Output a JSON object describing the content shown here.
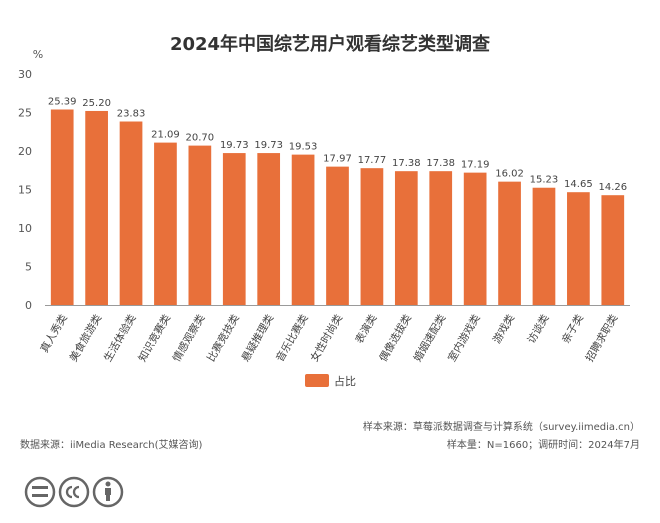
{
  "chart_data": {
    "type": "bar",
    "title": "2024年中国综艺用户观看综艺类型调查",
    "ylabel": "%",
    "ylim": [
      0,
      30
    ],
    "yticks": [
      0,
      5,
      10,
      15,
      20,
      25,
      30
    ],
    "grid": false,
    "legend_position": "bottom-center",
    "categories": [
      "真人秀类",
      "美食旅游类",
      "生活体验类",
      "知识竞赛类",
      "情感观察类",
      "比赛竞技类",
      "悬疑推理类",
      "音乐比赛类",
      "女性时尚类",
      "表演类",
      "偶像选拔类",
      "婚姻速配类",
      "室内游戏类",
      "游戏类",
      "访谈类",
      "亲子类",
      "招聘求职类"
    ],
    "series": [
      {
        "name": "占比",
        "color": "#E8703A",
        "values": [
          25.39,
          25.2,
          23.83,
          21.09,
          20.7,
          19.73,
          19.73,
          19.53,
          17.97,
          17.77,
          17.38,
          17.38,
          17.19,
          16.02,
          15.23,
          14.65,
          14.26
        ],
        "labels": [
          "25.39",
          "25.20",
          "23.83",
          "21.09",
          "20.70",
          "19.73",
          "19.73",
          "19.53",
          "17.97",
          "17.77",
          "17.38",
          "17.38",
          "17.19",
          "16.02",
          "15.23",
          "14.65",
          "14.26"
        ]
      }
    ]
  },
  "footer": {
    "source_left": "数据来源：iiMedia Research(艾媒咨询)",
    "sample_source": "样本来源：草莓派数据调查与计算系统（survey.iimedia.cn）",
    "sample_size": "样本量：N=1660；调研时间：2024年7月"
  },
  "license_icons": [
    "equals-icon",
    "cc-icon",
    "attribution-icon"
  ]
}
